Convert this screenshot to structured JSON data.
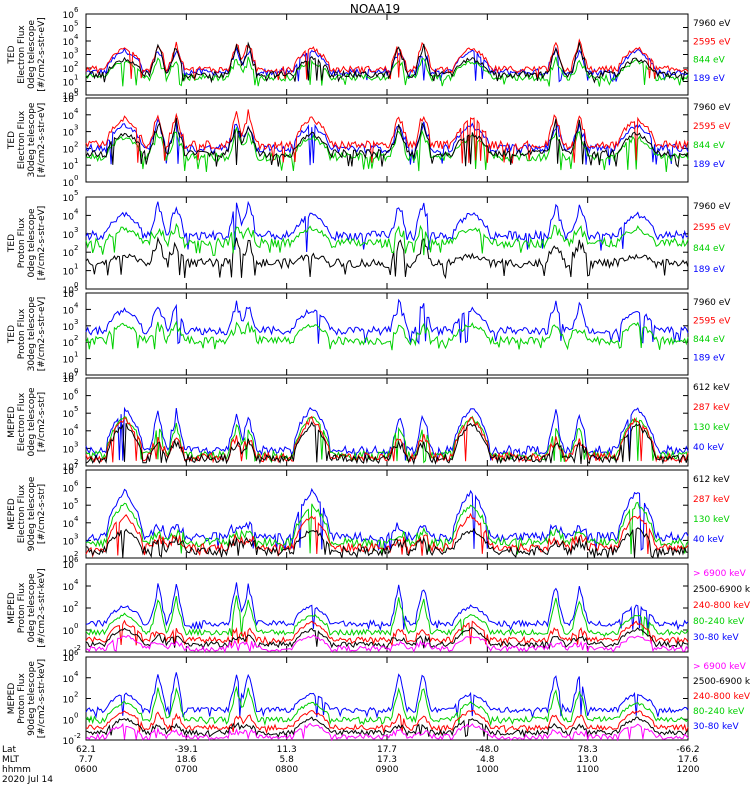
{
  "title": "NOAA19",
  "chart_data": [
    {
      "type": "line",
      "ylabel": [
        "TED",
        "Electron Flux",
        "0deg telescope",
        "[#/cm2-s-str-eV]"
      ],
      "ylim": [
        1,
        1000000
      ],
      "yscale": "log",
      "yticks": [
        {
          "exp": 0,
          "label": "10"
        },
        {
          "exp": 1,
          "label": "10"
        },
        {
          "exp": 2,
          "label": "10"
        },
        {
          "exp": 3,
          "label": "10"
        },
        {
          "exp": 4,
          "label": "10"
        },
        {
          "exp": 5,
          "label": "10"
        },
        {
          "exp": 6,
          "label": "10"
        }
      ],
      "legend": [
        {
          "label": "7960 eV",
          "color": "#000000"
        },
        {
          "label": "2595 eV",
          "color": "#ff0000"
        },
        {
          "label": "844 eV",
          "color": "#00d000"
        },
        {
          "label": "189 eV",
          "color": "#0000ff"
        }
      ],
      "series": [
        {
          "color": "#0000ff",
          "level": 1.7,
          "spike": 1.3,
          "floor": 1.0,
          "peaks": [
            [
              1.6,
              4.5
            ]
          ]
        },
        {
          "color": "#00d000",
          "level": 1.3,
          "spike": 1.0,
          "floor": 0.6,
          "peaks": [
            [
              1.2,
              4.0
            ]
          ]
        },
        {
          "color": "#ff0000",
          "level": 1.9,
          "spike": 1.7,
          "floor": 1.1,
          "peaks": [
            [
              1.6,
              4.5
            ]
          ]
        },
        {
          "color": "#000000",
          "level": 1.5,
          "spike": 1.9,
          "floor": 0.9,
          "peaks": [
            [
              1.2,
              4.0
            ]
          ]
        }
      ]
    },
    {
      "type": "line",
      "ylabel": [
        "TED",
        "Electron Flux",
        "30deg telescope",
        "[#/cm2-s-str-eV]"
      ],
      "ylim": [
        1,
        100000
      ],
      "yscale": "log",
      "yticks": [
        {
          "exp": 0,
          "label": "10"
        },
        {
          "exp": 1,
          "label": "10"
        },
        {
          "exp": 2,
          "label": "10"
        },
        {
          "exp": 3,
          "label": "10"
        },
        {
          "exp": 4,
          "label": "10"
        },
        {
          "exp": 5,
          "label": "10"
        }
      ],
      "legend": [
        {
          "label": "7960 eV",
          "color": "#000000"
        },
        {
          "label": "2595 eV",
          "color": "#ff0000"
        },
        {
          "label": "844 eV",
          "color": "#00d000"
        },
        {
          "label": "189 eV",
          "color": "#0000ff"
        }
      ],
      "series": [
        {
          "color": "#0000ff",
          "level": 2.0,
          "spike": 1.2,
          "floor": 1.0,
          "peaks": [
            [
              1.4,
              4.0
            ]
          ]
        },
        {
          "color": "#00d000",
          "level": 1.5,
          "spike": 1.2,
          "floor": 0.6,
          "peaks": [
            [
              1.2,
              4.0
            ]
          ]
        },
        {
          "color": "#ff0000",
          "level": 2.2,
          "spike": 1.6,
          "floor": 1.1,
          "peaks": [
            [
              1.6,
              4.3
            ]
          ]
        },
        {
          "color": "#000000",
          "level": 1.7,
          "spike": 1.6,
          "floor": 0.9,
          "peaks": [
            [
              1.2,
              4.0
            ]
          ]
        }
      ]
    },
    {
      "type": "line",
      "ylabel": [
        "TED",
        "Proton Flux",
        "0deg telescope",
        "[#/cm2-s-str-eV]"
      ],
      "ylim": [
        1,
        100000
      ],
      "yscale": "log",
      "yticks": [
        {
          "exp": 0,
          "label": "10"
        },
        {
          "exp": 1,
          "label": "10"
        },
        {
          "exp": 2,
          "label": "10"
        },
        {
          "exp": 3,
          "label": "10"
        },
        {
          "exp": 4,
          "label": "10"
        },
        {
          "exp": 5,
          "label": "10"
        }
      ],
      "legend": [
        {
          "label": "7960 eV",
          "color": "#000000"
        },
        {
          "label": "2595 eV",
          "color": "#ff0000"
        },
        {
          "label": "844 eV",
          "color": "#00d000"
        },
        {
          "label": "189 eV",
          "color": "#0000ff"
        }
      ],
      "series": [
        {
          "color": "#0000ff",
          "level": 2.9,
          "spike": 1.4,
          "floor": 2.0,
          "peaks": [
            [
              1.2,
              5.0
            ],
            [
              0.6,
              5.0
            ]
          ]
        },
        {
          "color": "#000000",
          "level": 1.4,
          "spike": 0.8,
          "floor": 0.6,
          "peaks": [
            [
              0.4,
              3.0
            ]
          ]
        },
        {
          "color": "#00d000",
          "level": 2.5,
          "spike": 0.5,
          "floor": 1.8,
          "peaks": [
            [
              0.8,
              5.0
            ],
            [
              0.6,
              6.0
            ]
          ]
        }
      ]
    },
    {
      "type": "line",
      "ylabel": [
        "TED",
        "Proton Flux",
        "30deg telescope",
        "[#/cm2-s-str-eV]"
      ],
      "ylim": [
        1,
        100000
      ],
      "yscale": "log",
      "yticks": [
        {
          "exp": 0,
          "label": "10"
        },
        {
          "exp": 1,
          "label": "10"
        },
        {
          "exp": 2,
          "label": "10"
        },
        {
          "exp": 3,
          "label": "10"
        },
        {
          "exp": 4,
          "label": "10"
        },
        {
          "exp": 5,
          "label": "10"
        }
      ],
      "legend": [
        {
          "label": "7960 eV",
          "color": "#000000"
        },
        {
          "label": "2595 eV",
          "color": "#ff0000"
        },
        {
          "label": "844 eV",
          "color": "#00d000"
        },
        {
          "label": "189 eV",
          "color": "#0000ff"
        }
      ],
      "series": [
        {
          "color": "#0000ff",
          "level": 2.7,
          "spike": 1.4,
          "floor": 1.9,
          "peaks": [
            [
              1.3,
              5.0
            ],
            [
              0.5,
              5.0
            ]
          ]
        },
        {
          "color": "#00d000",
          "level": 2.1,
          "spike": 0.6,
          "floor": 1.5,
          "peaks": [
            [
              1.0,
              5.0
            ],
            [
              0.6,
              6.0
            ]
          ]
        }
      ]
    },
    {
      "type": "line",
      "ylabel": [
        "MEPED",
        "Electron Flux",
        "0deg telescope",
        "[#/cm2-s-str]"
      ],
      "ylim": [
        100,
        10000000
      ],
      "yscale": "log",
      "yticks": [
        {
          "exp": 2,
          "label": "10"
        },
        {
          "exp": 3,
          "label": "10"
        },
        {
          "exp": 4,
          "label": "10"
        },
        {
          "exp": 5,
          "label": "10"
        },
        {
          "exp": 6,
          "label": "10"
        },
        {
          "exp": 7,
          "label": "10"
        }
      ],
      "legend": [
        {
          "label": "612 keV",
          "color": "#000000"
        },
        {
          "label": "287 keV",
          "color": "#ff0000"
        },
        {
          "label": "130 keV",
          "color": "#00d000"
        },
        {
          "label": "40 keV",
          "color": "#0000ff"
        }
      ],
      "series": [
        {
          "color": "#0000ff",
          "level": 2.9,
          "spike": 1.8,
          "floor": 2.3,
          "peaks": [
            [
              2.4,
              4.0
            ]
          ]
        },
        {
          "color": "#00d000",
          "level": 2.6,
          "spike": 1.4,
          "floor": 2.2,
          "peaks": [
            [
              2.2,
              4.0
            ]
          ]
        },
        {
          "color": "#ff0000",
          "level": 2.5,
          "spike": 0.8,
          "floor": 2.2,
          "peaks": [
            [
              2.2,
              4.0
            ]
          ]
        },
        {
          "color": "#000000",
          "level": 2.4,
          "spike": 0.6,
          "floor": 2.1,
          "peaks": [
            [
              2.0,
              4.0
            ]
          ]
        }
      ]
    },
    {
      "type": "line",
      "ylabel": [
        "MEPED",
        "Electron Flux",
        "90deg telescope",
        "[#/cm2-s-str]"
      ],
      "ylim": [
        100,
        10000000
      ],
      "yscale": "log",
      "yticks": [
        {
          "exp": 2,
          "label": "10"
        },
        {
          "exp": 3,
          "label": "10"
        },
        {
          "exp": 4,
          "label": "10"
        },
        {
          "exp": 5,
          "label": "10"
        },
        {
          "exp": 6,
          "label": "10"
        },
        {
          "exp": 7,
          "label": "10"
        }
      ],
      "legend": [
        {
          "label": "612 keV",
          "color": "#000000"
        },
        {
          "label": "287 keV",
          "color": "#ff0000"
        },
        {
          "label": "130 keV",
          "color": "#00d000"
        },
        {
          "label": "40 keV",
          "color": "#0000ff"
        }
      ],
      "series": [
        {
          "color": "#0000ff",
          "level": 3.2,
          "spike": 0.3,
          "floor": 2.4,
          "peaks": [
            [
              2.6,
              4.0
            ],
            [
              1.6,
              2.2
            ],
            [
              1.4,
              1.6
            ]
          ]
        },
        {
          "color": "#00d000",
          "level": 2.9,
          "spike": 0.2,
          "floor": 2.2,
          "peaks": [
            [
              2.2,
              4.0
            ],
            [
              1.2,
              2.2
            ]
          ]
        },
        {
          "color": "#ff0000",
          "level": 2.6,
          "spike": 0.2,
          "floor": 2.1,
          "peaks": [
            [
              1.8,
              4.0
            ],
            [
              1.0,
              2.2
            ]
          ]
        },
        {
          "color": "#000000",
          "level": 2.4,
          "spike": 0.2,
          "floor": 2.0,
          "peaks": [
            [
              1.2,
              4.0
            ]
          ]
        }
      ]
    },
    {
      "type": "line",
      "ylabel": [
        "MEPED",
        "Proton Flux",
        "0deg telescope",
        "[#/cm2-s-str-keV]"
      ],
      "ylim": [
        0.01,
        1000000
      ],
      "yscale": "log",
      "yticks": [
        {
          "exp": -2,
          "label": "10"
        },
        {
          "exp": 0,
          "label": "10"
        },
        {
          "exp": 2,
          "label": "10"
        },
        {
          "exp": 4,
          "label": "10"
        },
        {
          "exp": 6,
          "label": "10"
        }
      ],
      "legend": [
        {
          "label": "> 6900 keV",
          "color": "#ff00ff"
        },
        {
          "label": "2500-6900 keV",
          "color": "#000000"
        },
        {
          "label": "240-800 keV",
          "color": "#ff0000"
        },
        {
          "label": "80-240 keV",
          "color": "#00d000"
        },
        {
          "label": "30-80 keV",
          "color": "#0000ff"
        }
      ],
      "series": [
        {
          "color": "#0000ff",
          "level": 0.6,
          "spike": 3.2,
          "floor": 0.0,
          "peaks": [
            [
              1.6,
              5.0
            ]
          ]
        },
        {
          "color": "#00d000",
          "level": -0.2,
          "spike": 2.8,
          "floor": -0.6,
          "peaks": [
            [
              1.6,
              5.0
            ]
          ]
        },
        {
          "color": "#ff0000",
          "level": -0.9,
          "spike": 0.6,
          "floor": -1.4,
          "peaks": [
            [
              1.6,
              5.0
            ]
          ]
        },
        {
          "color": "#000000",
          "level": -1.3,
          "spike": 0.4,
          "floor": -1.7,
          "peaks": [
            [
              1.4,
              5.0
            ]
          ]
        },
        {
          "color": "#ff00ff",
          "level": -1.7,
          "spike": 0.2,
          "floor": -2.0,
          "peaks": [
            [
              1.2,
              5.0
            ]
          ]
        }
      ]
    },
    {
      "type": "line",
      "ylabel": [
        "MEPED",
        "Proton Flux",
        "90deg telescope",
        "[#/cm2-s-str-keV]"
      ],
      "ylim": [
        0.01,
        1000000
      ],
      "yscale": "log",
      "yticks": [
        {
          "exp": -2,
          "label": "10"
        },
        {
          "exp": 0,
          "label": "10"
        },
        {
          "exp": 2,
          "label": "10"
        },
        {
          "exp": 4,
          "label": "10"
        },
        {
          "exp": 6,
          "label": "10"
        }
      ],
      "legend": [
        {
          "label": "> 6900 keV",
          "color": "#ff00ff"
        },
        {
          "label": "2500-6900 keV",
          "color": "#000000"
        },
        {
          "label": "240-800 keV",
          "color": "#ff0000"
        },
        {
          "label": "80-240 keV",
          "color": "#00d000"
        },
        {
          "label": "30-80 keV",
          "color": "#0000ff"
        }
      ],
      "series": [
        {
          "color": "#0000ff",
          "level": 0.9,
          "spike": 3.2,
          "floor": 0.2,
          "peaks": [
            [
              1.6,
              5.0
            ]
          ]
        },
        {
          "color": "#00d000",
          "level": 0.0,
          "spike": 2.6,
          "floor": -0.5,
          "peaks": [
            [
              1.6,
              5.0
            ]
          ]
        },
        {
          "color": "#ff0000",
          "level": -0.8,
          "spike": 1.0,
          "floor": -1.3,
          "peaks": [
            [
              1.6,
              5.0
            ]
          ]
        },
        {
          "color": "#000000",
          "level": -1.3,
          "spike": 0.5,
          "floor": -1.7,
          "peaks": [
            [
              1.4,
              5.0
            ]
          ]
        },
        {
          "color": "#ff00ff",
          "level": -1.7,
          "spike": 0.2,
          "floor": -2.0,
          "peaks": [
            [
              1.2,
              5.0
            ]
          ]
        }
      ]
    }
  ],
  "time_axis": {
    "range": [
      "0600",
      "1200"
    ],
    "rows": [
      {
        "label": "Lat",
        "values": [
          "62.1",
          "-39.1",
          "11.3",
          "17.7",
          "-48.0",
          "78.3",
          "-66.2"
        ]
      },
      {
        "label": "MLT",
        "values": [
          "7.7",
          "18.6",
          "5.8",
          "17.3",
          "4.8",
          "13.0",
          "17.6"
        ]
      },
      {
        "label": "hhmm",
        "values": [
          "0600",
          "0700",
          "0800",
          "0900",
          "1000",
          "1100",
          "1200"
        ]
      }
    ],
    "date": "2020 Jul 14"
  }
}
